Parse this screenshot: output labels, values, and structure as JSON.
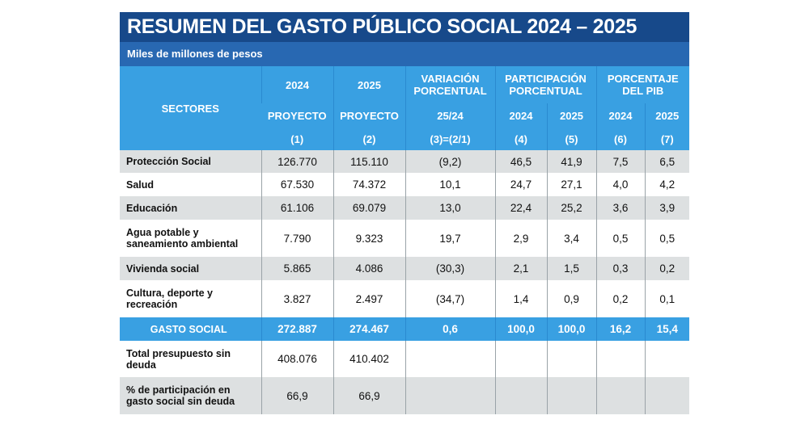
{
  "title": "RESUMEN DEL GASTO PÚBLICO SOCIAL 2024 – 2025",
  "subtitle": "Miles de millones de pesos",
  "header": {
    "sectors": "SECTORES",
    "row1": [
      "2024",
      "2025",
      "VARIACIÓN PORCENTUAL",
      "PARTICIPACIÓN PORCENTUAL",
      "PORCENTAJE DEL PIB"
    ],
    "row2": [
      "PROYECTO",
      "PROYECTO",
      "25/24",
      "2024",
      "2025",
      "2024",
      "2025"
    ],
    "row3": [
      "(1)",
      "(2)",
      "(3)=(2/1)",
      "(4)",
      "(5)",
      "(6)",
      "(7)"
    ]
  },
  "rows": [
    [
      "Protección Social",
      "126.770",
      "115.110",
      "(9,2)",
      "46,5",
      "41,9",
      "7,5",
      "6,5"
    ],
    [
      "Salud",
      "67.530",
      "74.372",
      "10,1",
      "24,7",
      "27,1",
      "4,0",
      "4,2"
    ],
    [
      "Educación",
      "61.106",
      "69.079",
      "13,0",
      "22,4",
      "25,2",
      "3,6",
      "3,9"
    ],
    [
      "Agua potable y saneamiento ambiental",
      "7.790",
      "9.323",
      "19,7",
      "2,9",
      "3,4",
      "0,5",
      "0,5"
    ],
    [
      "Vivienda social",
      "5.865",
      "4.086",
      "(30,3)",
      "2,1",
      "1,5",
      "0,3",
      "0,2"
    ],
    [
      "Cultura, deporte y recreación",
      "3.827",
      "2.497",
      "(34,7)",
      "1,4",
      "0,9",
      "0,2",
      "0,1"
    ],
    [
      "GASTO SOCIAL",
      "272.887",
      "274.467",
      "0,6",
      "100,0",
      "100,0",
      "16,2",
      "15,4"
    ],
    [
      "Total presupuesto sin deuda",
      "408.076",
      "410.402"
    ],
    [
      "% de participación en gasto social sin deuda",
      "66,9",
      "66,9"
    ]
  ]
}
